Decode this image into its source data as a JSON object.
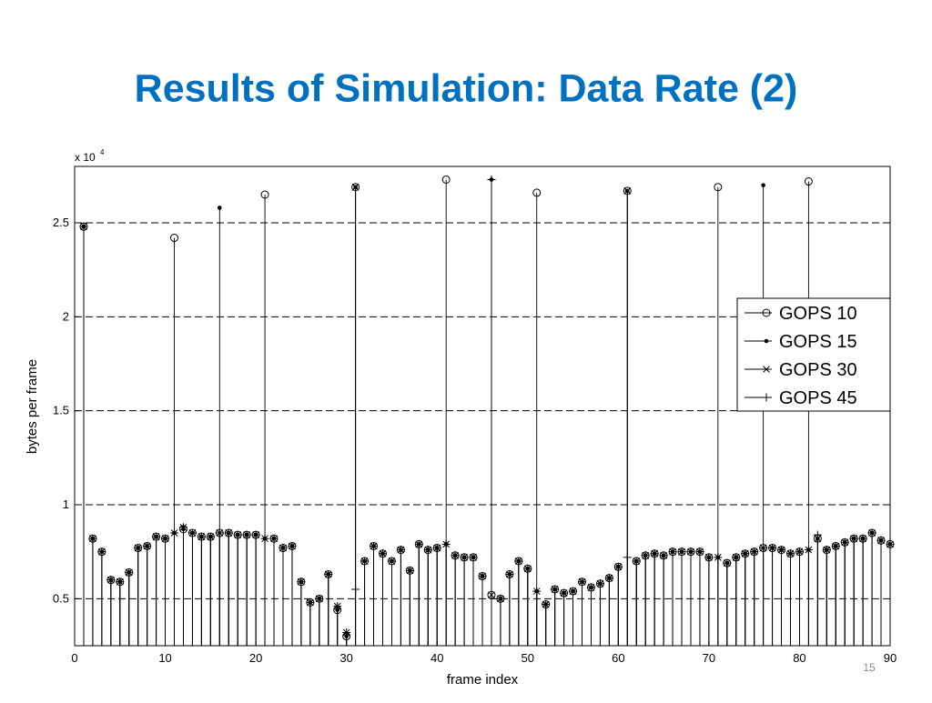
{
  "page_number": "15",
  "chart_data": {
    "type": "stem",
    "title": "Results of Simulation: Data Rate (2)",
    "xlabel": "frame index",
    "ylabel": "bytes per frame",
    "y_multiplier": "x 10",
    "y_exponent": "4",
    "xlim": [
      0,
      90
    ],
    "ylim": [
      0.25,
      2.8
    ],
    "xticks": [
      0,
      10,
      20,
      30,
      40,
      50,
      60,
      70,
      80,
      90
    ],
    "yticks": [
      0.5,
      1,
      1.5,
      2,
      2.5
    ],
    "grid": true,
    "legend": "right",
    "x": [
      1,
      2,
      3,
      4,
      5,
      6,
      7,
      8,
      9,
      10,
      11,
      12,
      13,
      14,
      15,
      16,
      17,
      18,
      19,
      20,
      21,
      22,
      23,
      24,
      25,
      26,
      27,
      28,
      29,
      30,
      31,
      32,
      33,
      34,
      35,
      36,
      37,
      38,
      39,
      40,
      41,
      42,
      43,
      44,
      45,
      46,
      47,
      48,
      49,
      50,
      51,
      52,
      53,
      54,
      55,
      56,
      57,
      58,
      59,
      60,
      61,
      62,
      63,
      64,
      65,
      66,
      67,
      68,
      69,
      70,
      71,
      72,
      73,
      74,
      75,
      76,
      77,
      78,
      79,
      80,
      81,
      82,
      83,
      84,
      85,
      86,
      87,
      88,
      89,
      90
    ],
    "series": [
      {
        "name": "GOPS 10",
        "color": "#000000",
        "marker": "circle",
        "values": [
          2.48,
          0.82,
          0.75,
          0.6,
          0.59,
          0.64,
          0.77,
          0.78,
          0.83,
          0.82,
          2.42,
          0.87,
          0.85,
          0.83,
          0.83,
          0.85,
          0.85,
          0.84,
          0.84,
          0.84,
          2.65,
          0.82,
          0.77,
          0.78,
          0.59,
          0.48,
          0.5,
          0.63,
          0.44,
          0.3,
          2.69,
          0.7,
          0.78,
          0.74,
          0.7,
          0.76,
          0.65,
          0.79,
          0.76,
          0.77,
          2.73,
          0.73,
          0.72,
          0.72,
          0.62,
          0.52,
          0.5,
          0.63,
          0.7,
          0.66,
          2.66,
          0.47,
          0.55,
          0.53,
          0.54,
          0.59,
          0.56,
          0.58,
          0.61,
          0.67,
          2.67,
          0.7,
          0.73,
          0.74,
          0.73,
          0.75,
          0.75,
          0.75,
          0.75,
          0.72,
          2.69,
          0.69,
          0.72,
          0.74,
          0.75,
          0.77,
          0.77,
          0.76,
          0.74,
          0.75,
          2.72,
          0.82,
          0.76,
          0.78,
          0.8,
          0.82,
          0.82,
          0.85,
          0.81,
          0.79
        ]
      },
      {
        "name": "GOPS 15",
        "color": "#000000",
        "marker": "dot",
        "values": [
          2.48,
          0.82,
          0.75,
          0.6,
          0.59,
          0.64,
          0.77,
          0.78,
          0.83,
          0.82,
          0.85,
          0.87,
          0.85,
          0.83,
          0.83,
          2.58,
          0.85,
          0.84,
          0.84,
          0.84,
          0.82,
          0.82,
          0.77,
          0.78,
          0.59,
          0.48,
          0.5,
          0.63,
          0.44,
          0.3,
          2.69,
          0.7,
          0.78,
          0.74,
          0.7,
          0.76,
          0.65,
          0.79,
          0.76,
          0.77,
          0.79,
          0.73,
          0.72,
          0.72,
          0.62,
          2.73,
          0.5,
          0.63,
          0.7,
          0.66,
          0.54,
          0.47,
          0.55,
          0.53,
          0.54,
          0.59,
          0.56,
          0.58,
          0.61,
          0.67,
          2.67,
          0.7,
          0.73,
          0.74,
          0.73,
          0.75,
          0.75,
          0.75,
          0.75,
          0.72,
          0.72,
          0.69,
          0.72,
          0.74,
          0.75,
          2.7,
          0.77,
          0.76,
          0.74,
          0.75,
          0.76,
          0.82,
          0.76,
          0.78,
          0.8,
          0.82,
          0.82,
          0.85,
          0.81,
          0.79
        ]
      },
      {
        "name": "GOPS 30",
        "color": "#000000",
        "marker": "x",
        "values": [
          2.48,
          0.82,
          0.75,
          0.6,
          0.59,
          0.64,
          0.77,
          0.78,
          0.83,
          0.82,
          0.85,
          0.88,
          0.85,
          0.83,
          0.83,
          0.85,
          0.85,
          0.84,
          0.84,
          0.84,
          0.82,
          0.82,
          0.77,
          0.78,
          0.59,
          0.48,
          0.5,
          0.63,
          0.46,
          0.32,
          2.69,
          0.7,
          0.78,
          0.74,
          0.7,
          0.76,
          0.65,
          0.79,
          0.76,
          0.77,
          0.79,
          0.73,
          0.72,
          0.72,
          0.62,
          0.52,
          0.5,
          0.63,
          0.7,
          0.66,
          0.54,
          0.47,
          0.55,
          0.53,
          0.54,
          0.59,
          0.56,
          0.58,
          0.61,
          0.67,
          2.67,
          0.7,
          0.73,
          0.74,
          0.73,
          0.75,
          0.75,
          0.75,
          0.75,
          0.72,
          0.72,
          0.69,
          0.72,
          0.74,
          0.75,
          0.77,
          0.77,
          0.76,
          0.74,
          0.75,
          0.76,
          0.82,
          0.76,
          0.78,
          0.8,
          0.82,
          0.82,
          0.85,
          0.81,
          0.79
        ]
      },
      {
        "name": "GOPS 45",
        "color": "#000000",
        "marker": "plus",
        "values": [
          2.48,
          0.82,
          0.75,
          0.6,
          0.59,
          0.64,
          0.77,
          0.78,
          0.83,
          0.82,
          0.85,
          0.88,
          0.85,
          0.83,
          0.83,
          0.85,
          0.85,
          0.84,
          0.84,
          0.84,
          0.82,
          0.82,
          0.77,
          0.78,
          0.59,
          0.48,
          0.5,
          0.63,
          0.46,
          0.32,
          0.55,
          0.7,
          0.78,
          0.74,
          0.7,
          0.76,
          0.65,
          0.79,
          0.76,
          0.77,
          0.79,
          0.73,
          0.72,
          0.72,
          0.62,
          2.73,
          0.5,
          0.63,
          0.7,
          0.66,
          0.54,
          0.47,
          0.55,
          0.53,
          0.54,
          0.59,
          0.56,
          0.58,
          0.61,
          0.67,
          0.72,
          0.7,
          0.73,
          0.74,
          0.73,
          0.75,
          0.75,
          0.75,
          0.75,
          0.72,
          0.72,
          0.69,
          0.72,
          0.74,
          0.75,
          0.77,
          0.77,
          0.76,
          0.74,
          0.75,
          0.76,
          0.84,
          0.76,
          0.78,
          0.8,
          0.82,
          0.82,
          0.85,
          0.81,
          0.79
        ]
      }
    ]
  }
}
